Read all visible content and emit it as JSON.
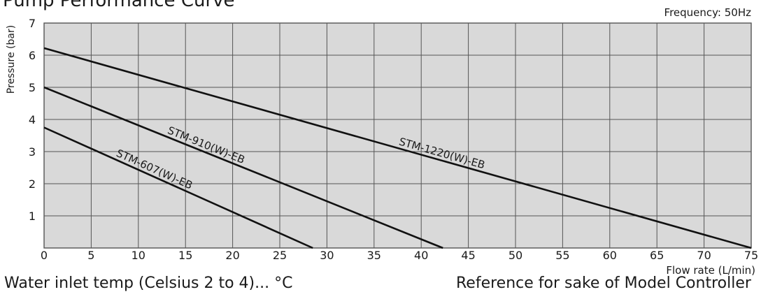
{
  "page": {
    "title": "Pump Performance Curve",
    "frequency": "Frequency: 50Hz",
    "note_left": "Water inlet temp (Celsius 2 to 4)... °C",
    "note_right": "Reference for sake of Model Controller"
  },
  "chart_data": {
    "type": "line",
    "title": "Pump Performance Curve",
    "xlabel": "Flow rate (L/min)",
    "ylabel": "Pressure (bar)",
    "xlim": [
      0,
      75
    ],
    "ylim": [
      0,
      7
    ],
    "xticks": [
      "0",
      "5",
      "10",
      "15",
      "20",
      "25",
      "30",
      "35",
      "40",
      "45",
      "50",
      "55",
      "60",
      "65",
      "70",
      "75"
    ],
    "yticks": [
      "1",
      "2",
      "3",
      "4",
      "5",
      "6",
      "7"
    ],
    "grid": true,
    "colors": {
      "plot_bg": "#d9d9d9",
      "grid": "#555555",
      "line": "#111111"
    },
    "series": [
      {
        "name": "STM-1220(W)-EB",
        "x": [
          0,
          75
        ],
        "y": [
          6.22,
          0
        ]
      },
      {
        "name": "STM-910(W)-EB",
        "x": [
          0,
          42.3
        ],
        "y": [
          5.0,
          0
        ]
      },
      {
        "name": "STM-607(W)-EB",
        "x": [
          0,
          28.5
        ],
        "y": [
          3.75,
          0
        ]
      }
    ]
  }
}
